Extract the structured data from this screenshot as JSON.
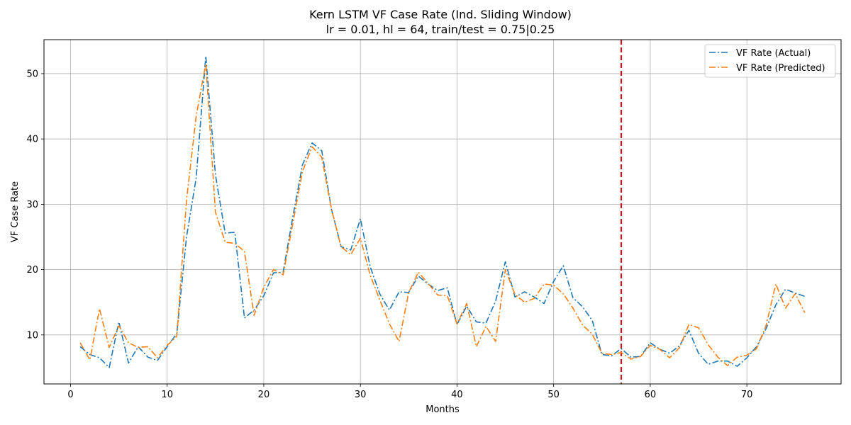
{
  "chart_data": {
    "type": "line",
    "title": "Kern LSTM VF Case Rate (Ind. Sliding Window)",
    "subtitle": "lr = 0.01, hl = 64, train/test = 0.75|0.25",
    "xlabel": "Months",
    "ylabel": "VF Case Rate",
    "xlim": [
      -2.75,
      79.75
    ],
    "ylim": [
      2.5,
      55.2
    ],
    "xticks": [
      0,
      10,
      20,
      30,
      40,
      50,
      60,
      70
    ],
    "yticks": [
      10,
      20,
      30,
      40,
      50
    ],
    "grid": true,
    "legend_position": "top-right",
    "split_marker": {
      "x": 57,
      "color": "#e8000b"
    },
    "x": [
      1,
      2,
      3,
      4,
      5,
      6,
      7,
      8,
      9,
      10,
      11,
      12,
      13,
      14,
      15,
      16,
      17,
      18,
      19,
      20,
      21,
      22,
      23,
      24,
      25,
      26,
      27,
      28,
      29,
      30,
      31,
      32,
      33,
      34,
      35,
      36,
      37,
      38,
      39,
      40,
      41,
      42,
      43,
      44,
      45,
      46,
      47,
      48,
      49,
      50,
      51,
      52,
      53,
      54,
      55,
      56,
      57,
      58,
      59,
      60,
      61,
      62,
      63,
      64,
      65,
      66,
      67,
      68,
      69,
      70,
      71,
      72,
      73,
      74,
      75,
      76
    ],
    "series": [
      {
        "name": "VF Rate (Actual)",
        "color": "#1f77b4",
        "values": [
          8.2,
          7.0,
          6.5,
          5.0,
          12.0,
          5.7,
          8.2,
          6.6,
          6.1,
          8.2,
          10.2,
          25.0,
          34.0,
          52.7,
          34.5,
          25.6,
          25.7,
          12.6,
          13.8,
          16.0,
          19.5,
          19.6,
          28.0,
          36.0,
          39.4,
          38.2,
          29.3,
          23.5,
          23.0,
          27.8,
          20.5,
          16.3,
          13.8,
          16.6,
          16.5,
          19.0,
          17.8,
          16.8,
          17.2,
          11.6,
          14.4,
          12.0,
          11.8,
          15.2,
          21.2,
          15.8,
          16.6,
          15.8,
          14.8,
          18.2,
          20.6,
          15.7,
          14.3,
          12.2,
          7.0,
          6.8,
          7.9,
          6.6,
          6.7,
          8.8,
          7.8,
          7.2,
          8.3,
          10.7,
          7.2,
          5.5,
          6.0,
          6.0,
          5.2,
          6.5,
          8.2,
          11.0,
          14.6,
          17.0,
          16.4,
          15.9
        ]
      },
      {
        "name": "VF Rate (Predicted)",
        "color": "#ff7f0e",
        "values": [
          8.8,
          6.2,
          14.0,
          8.1,
          11.4,
          8.8,
          8.1,
          8.2,
          6.5,
          8.4,
          9.8,
          30.6,
          43.5,
          51.5,
          28.8,
          24.2,
          24.0,
          22.8,
          13.0,
          17.3,
          20.0,
          19.2,
          27.0,
          35.0,
          38.8,
          37.2,
          29.3,
          23.5,
          22.3,
          24.8,
          19.2,
          15.4,
          11.7,
          9.0,
          16.5,
          19.6,
          17.9,
          16.1,
          16.0,
          11.7,
          14.8,
          8.2,
          11.3,
          9.0,
          20.0,
          16.2,
          15.0,
          15.6,
          17.8,
          17.6,
          16.3,
          14.1,
          11.5,
          10.1,
          7.2,
          7.0,
          7.3,
          6.3,
          6.7,
          8.4,
          7.8,
          6.5,
          8.0,
          11.6,
          11.1,
          8.5,
          6.6,
          5.3,
          6.6,
          6.9,
          7.9,
          11.5,
          17.8,
          14.1,
          16.3,
          13.4
        ]
      }
    ]
  }
}
